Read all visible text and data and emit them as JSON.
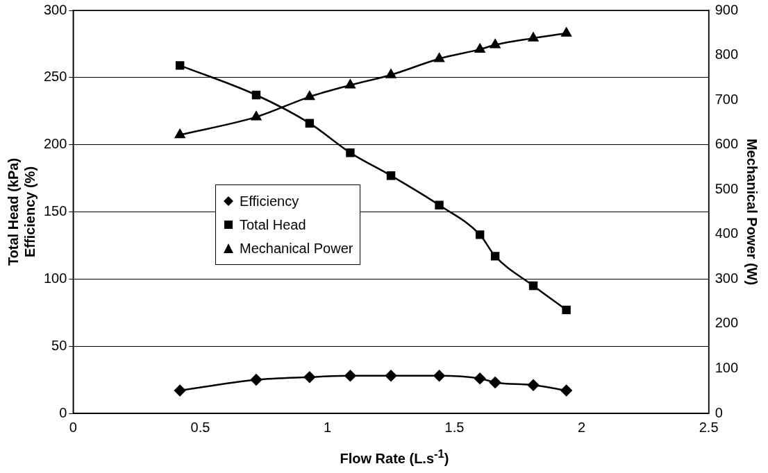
{
  "chart_data": {
    "type": "line",
    "xlabel": "Flow Rate (L.s$^{-1}$)",
    "ylabel": "Total Head (kPa)\nEfficiency (%)",
    "y2label": "Mechanical Power (W)",
    "x": [
      0.42,
      0.72,
      0.93,
      1.09,
      1.25,
      1.44,
      1.6,
      1.66,
      1.81,
      1.94
    ],
    "xlim": [
      0,
      2.5
    ],
    "xticks": [
      0,
      0.5,
      1,
      1.5,
      2,
      2.5
    ],
    "ylim": [
      0,
      300
    ],
    "yticks": [
      0,
      50,
      100,
      150,
      200,
      250,
      300
    ],
    "y2lim": [
      0,
      900
    ],
    "y2ticks": [
      0,
      100,
      200,
      300,
      400,
      500,
      600,
      700,
      800,
      900
    ],
    "grid": "y",
    "legend": "left",
    "line_style": "solid",
    "series": [
      {
        "name": "Efficiency",
        "color": "#000000",
        "marker": "diamond",
        "values": [
          17,
          25,
          27,
          28,
          28,
          28,
          26,
          23,
          21,
          17
        ]
      },
      {
        "name": "Total Head",
        "color": "#000000",
        "marker": "square",
        "values": [
          259,
          237,
          216,
          194,
          177,
          155,
          133,
          117,
          95,
          77
        ]
      },
      {
        "name": "Mechanical Power",
        "color": "#000000",
        "marker": "triangle",
        "axis": "y2",
        "values": [
          622,
          662,
          707,
          733,
          756,
          792,
          813,
          823,
          838,
          849
        ]
      }
    ]
  }
}
